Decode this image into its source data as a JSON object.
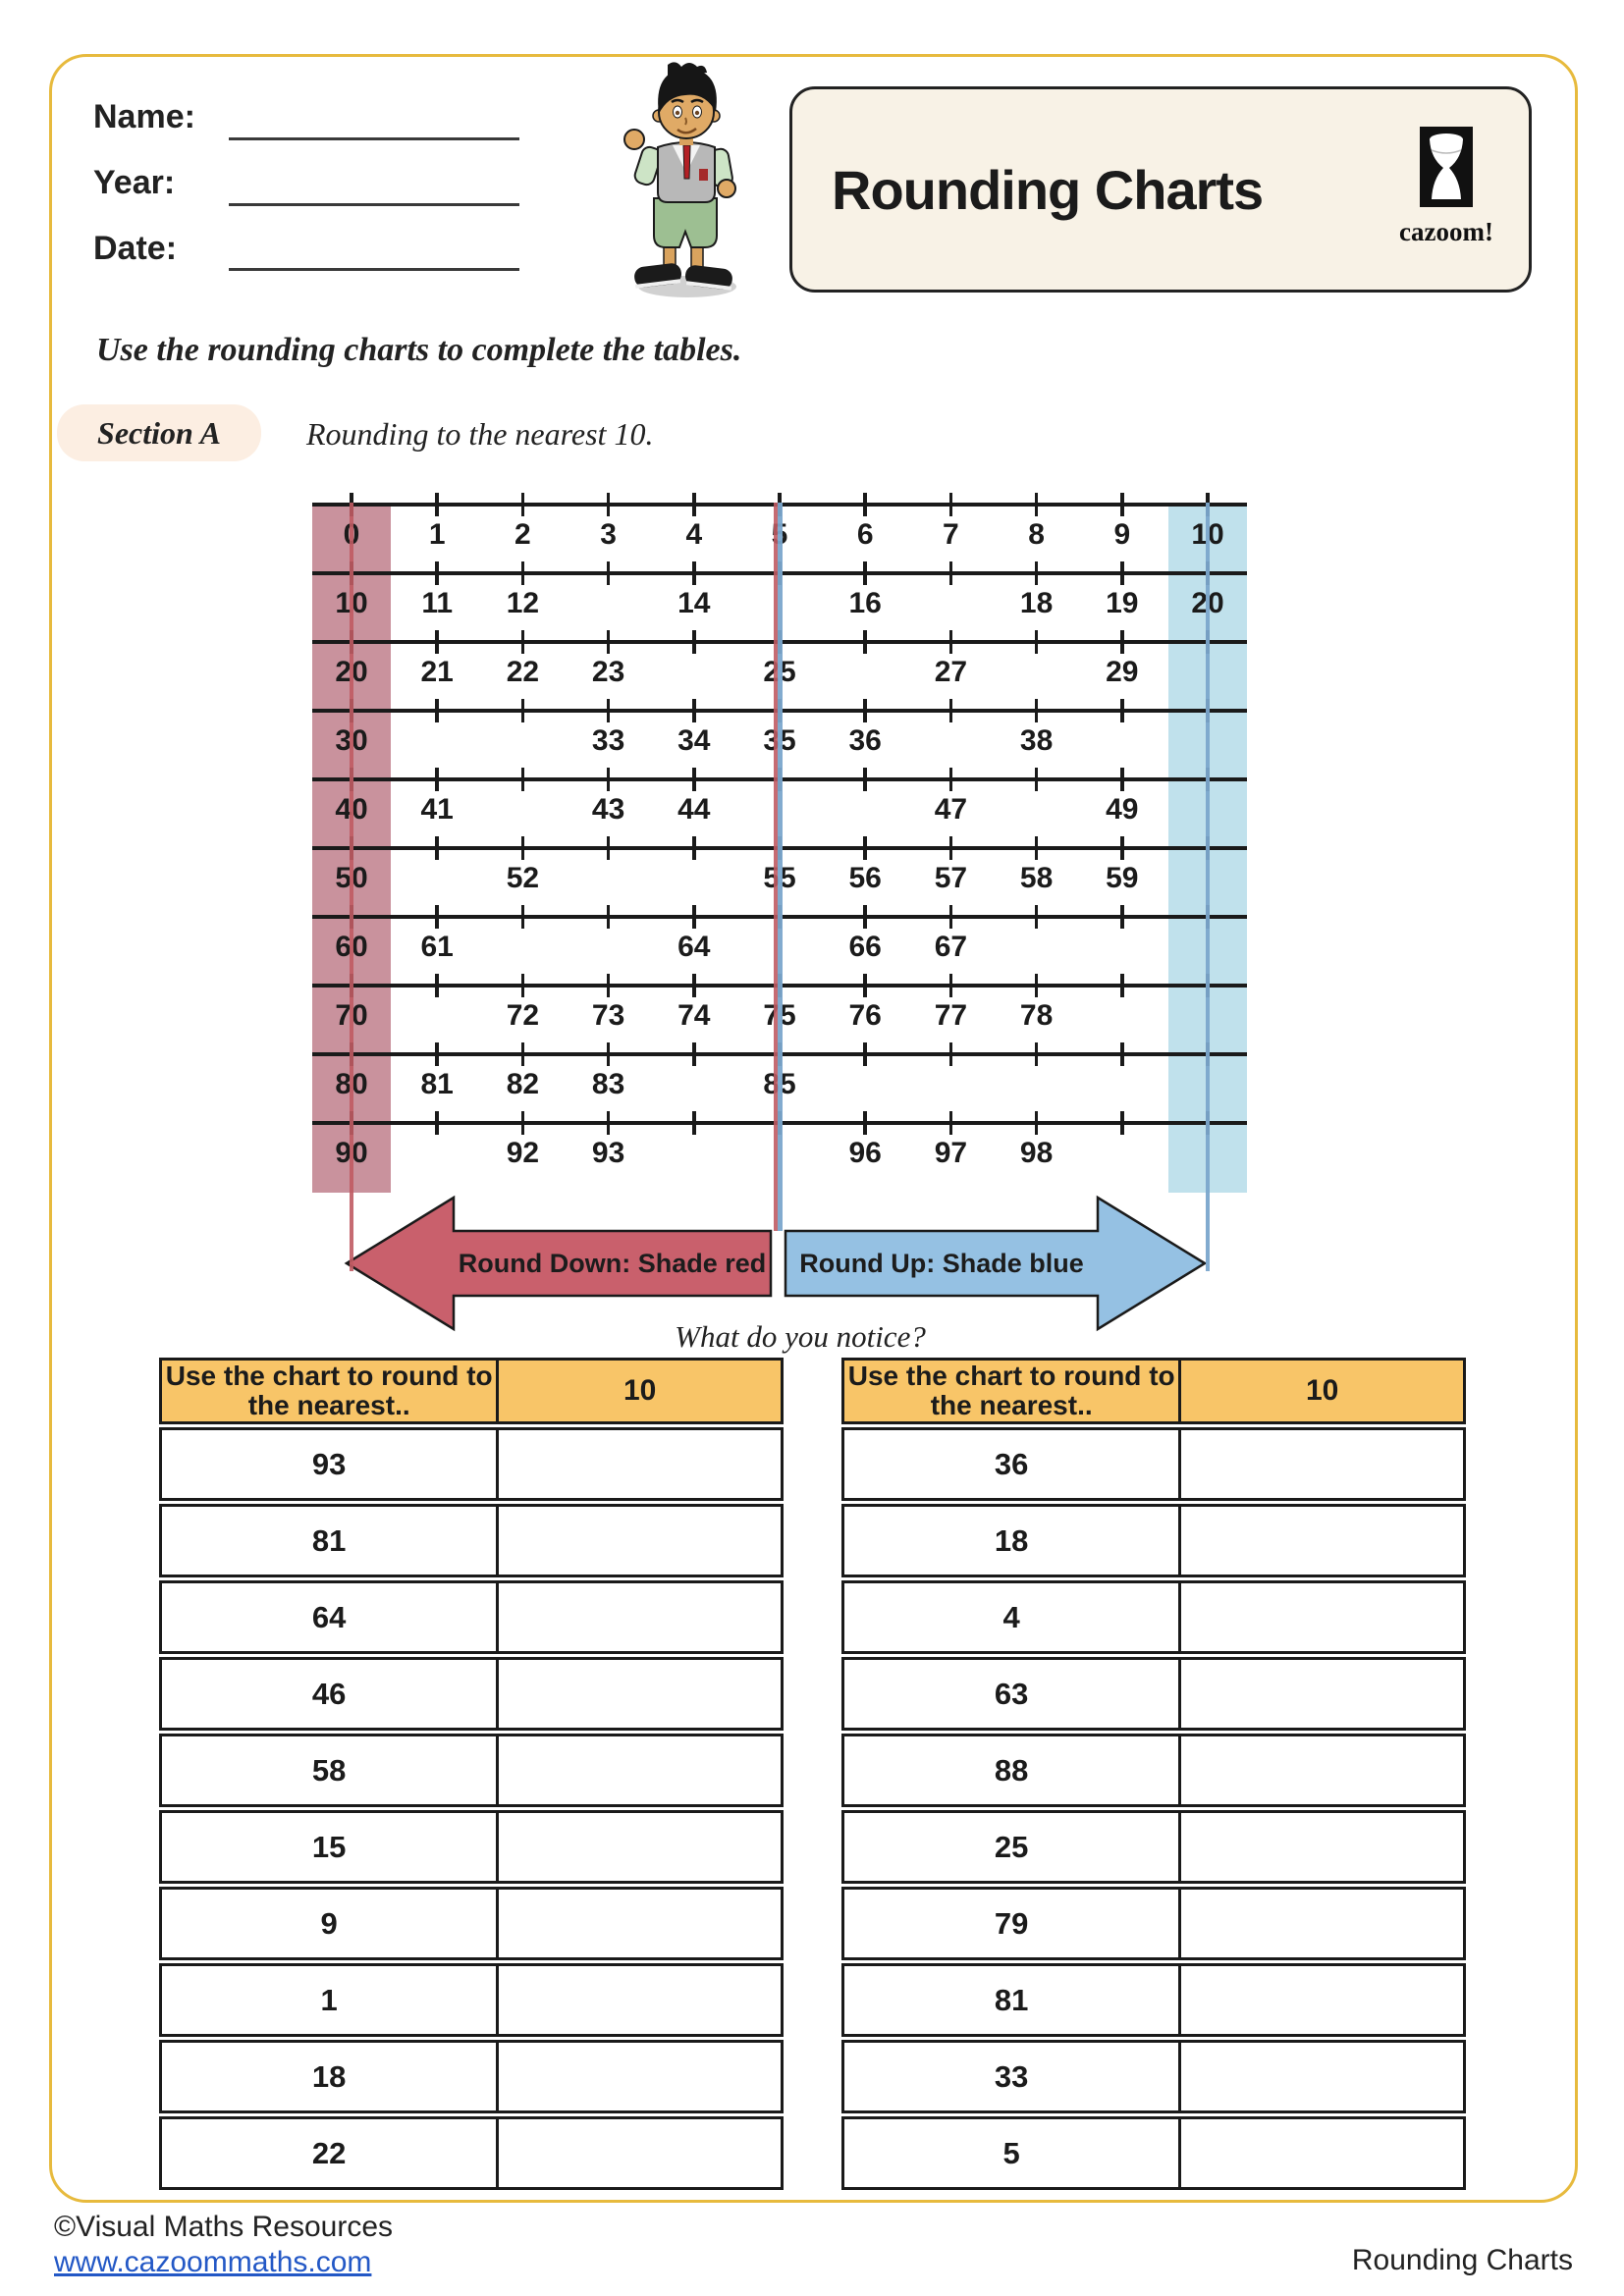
{
  "page": {
    "border_color": "#E7BA3D",
    "footer_copyright": "©Visual Maths Resources",
    "footer_website": "www.cazoommaths.com",
    "footer_title": "Rounding Charts"
  },
  "header": {
    "name_label": "Name:",
    "year_label": "Year:",
    "date_label": "Date:",
    "title": "Rounding Charts",
    "logo_text": "cazoom!"
  },
  "intro": {
    "instruction": "Use the rounding charts to complete the tables.",
    "section_label": "Section A",
    "section_subtitle": "Rounding to the nearest 10."
  },
  "chart": {
    "colors": {
      "round_down_shade": "#C9929D",
      "round_up_shade": "#C0E1EC",
      "down_line": "#C05B63",
      "up_line": "#7BA7CC"
    },
    "rows": [
      {
        "cells": [
          "0",
          "1",
          "2",
          "3",
          "4",
          "5",
          "6",
          "7",
          "8",
          "9",
          "10"
        ]
      },
      {
        "cells": [
          "10",
          "11",
          "12",
          "",
          "14",
          "",
          "16",
          "",
          "18",
          "19",
          "20"
        ]
      },
      {
        "cells": [
          "20",
          "21",
          "22",
          "23",
          "",
          "25",
          "",
          "27",
          "",
          "29",
          ""
        ]
      },
      {
        "cells": [
          "30",
          "",
          "",
          "33",
          "34",
          "35",
          "36",
          "",
          "38",
          "",
          ""
        ]
      },
      {
        "cells": [
          "40",
          "41",
          "",
          "43",
          "44",
          "",
          "",
          "47",
          "",
          "49",
          ""
        ]
      },
      {
        "cells": [
          "50",
          "",
          "52",
          "",
          "",
          "55",
          "56",
          "57",
          "58",
          "59",
          ""
        ]
      },
      {
        "cells": [
          "60",
          "61",
          "",
          "",
          "64",
          "",
          "66",
          "67",
          "",
          "",
          ""
        ]
      },
      {
        "cells": [
          "70",
          "",
          "72",
          "73",
          "74",
          "75",
          "76",
          "77",
          "78",
          "",
          ""
        ]
      },
      {
        "cells": [
          "80",
          "81",
          "82",
          "83",
          "",
          "85",
          "",
          "",
          "",
          "",
          ""
        ]
      },
      {
        "cells": [
          "90",
          "",
          "92",
          "93",
          "",
          "",
          "96",
          "97",
          "98",
          "",
          ""
        ]
      }
    ]
  },
  "arrows": {
    "round_down_label": "Round Down: Shade red",
    "round_up_label": "Round Up: Shade blue",
    "red_fill": "#C9606C",
    "blue_fill": "#95C1E3",
    "notice": "What do you notice?"
  },
  "tables": [
    {
      "header_question": "Use the chart to round to the nearest..",
      "header_target": "10",
      "values": [
        "93",
        "81",
        "64",
        "46",
        "58",
        "15",
        "9",
        "1",
        "18",
        "22"
      ]
    },
    {
      "header_question": "Use the chart to round to the nearest..",
      "header_target": "10",
      "values": [
        "36",
        "18",
        "4",
        "63",
        "88",
        "25",
        "79",
        "81",
        "33",
        "5"
      ]
    }
  ]
}
